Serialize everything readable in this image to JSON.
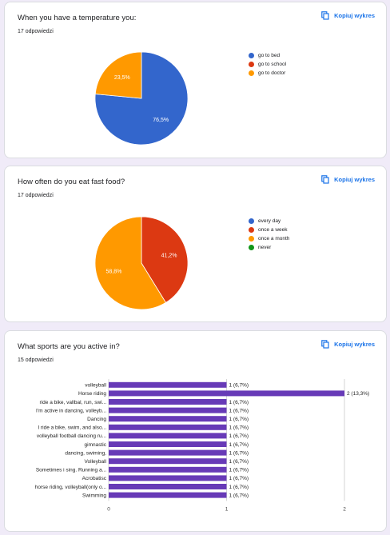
{
  "colors": {
    "blue": "#3366cc",
    "red": "#dc3912",
    "orange": "#ff9900",
    "green": "#109618",
    "purple": "#673ab7",
    "link": "#1a73e8"
  },
  "copy_label": "Kopiuj wykres",
  "questions": [
    {
      "title": "When you have a temperature you:",
      "count": "17 odpowiedzi"
    },
    {
      "title": "How often do you eat fast food?",
      "count": "17 odpowiedzi"
    },
    {
      "title": "What sports are you active in?",
      "count": "15 odpowiedzi"
    }
  ],
  "chart_data": [
    {
      "type": "pie",
      "labels": [
        "go to bed",
        "go to school",
        "go to doctor"
      ],
      "values": [
        76.5,
        0,
        23.5
      ],
      "slice_labels": [
        "76,5%",
        "",
        "23,5%"
      ],
      "colors": [
        "#3366cc",
        "#dc3912",
        "#ff9900"
      ],
      "legend": "right"
    },
    {
      "type": "pie",
      "labels": [
        "every day",
        "once a week",
        "once a month",
        "never"
      ],
      "values": [
        0,
        41.2,
        58.8,
        0
      ],
      "slice_labels": [
        "",
        "41,2%",
        "58,8%",
        ""
      ],
      "colors": [
        "#3366cc",
        "#dc3912",
        "#ff9900",
        "#109618"
      ],
      "legend": "right"
    },
    {
      "type": "bar",
      "orientation": "horizontal",
      "categories": [
        "volleyball",
        "Horse riding",
        "ride a bike, vallbal, run, swi...",
        "I'm active in dancing, volleyb...",
        "Dancing",
        "I ride a bike, swim, and also...",
        "volleyball football dancing ru...",
        "gimnastic",
        "dancing, swiming,",
        "Volleyball",
        "Sometimes i sing. Running a...",
        "Acrobatisc",
        "horse riding, volleyball(only o...",
        "Swimming"
      ],
      "values": [
        1,
        2,
        1,
        1,
        1,
        1,
        1,
        1,
        1,
        1,
        1,
        1,
        1,
        1
      ],
      "value_labels": [
        "1 (6,7%)",
        "2 (13,3%)",
        "1 (6,7%)",
        "1 (6,7%)",
        "1 (6,7%)",
        "1 (6,7%)",
        "1 (6,7%)",
        "1 (6,7%)",
        "1 (6,7%)",
        "1 (6,7%)",
        "1 (6,7%)",
        "1 (6,7%)",
        "1 (6,7%)",
        "1 (6,7%)"
      ],
      "xticks": [
        "0",
        "1",
        "2"
      ],
      "xlim": [
        0,
        2
      ],
      "color": "#673ab7"
    }
  ]
}
